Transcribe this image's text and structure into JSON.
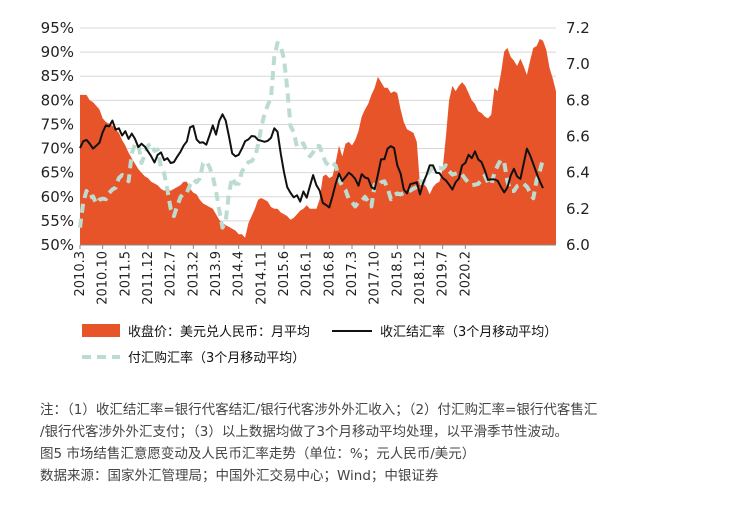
{
  "chart_data": {
    "type": "area",
    "x_tick_labels": [
      "2010.3",
      "2010.10",
      "2011.5",
      "2011.12",
      "2012.7",
      "2013.2",
      "2013.9",
      "2014.4",
      "2014.11",
      "2015.6",
      "2016.1",
      "2016.8",
      "2017.3",
      "2017.10",
      "2018.5",
      "2018.12",
      "2019.7",
      "2020.2"
    ],
    "y_left": {
      "ticks": [
        "95%",
        "90%",
        "85%",
        "80%",
        "75%",
        "70%",
        "65%",
        "60%",
        "55%",
        "50%"
      ],
      "range": [
        50,
        95
      ]
    },
    "y_right": {
      "ticks": [
        "7.2",
        "7.0",
        "6.8",
        "6.6",
        "6.4",
        "6.2",
        "6.0"
      ],
      "range": [
        6.0,
        7.2
      ]
    },
    "series": [
      {
        "name": "收盘价：美元兑人民币：月平均",
        "type": "area",
        "axis": "right",
        "color": "#e8542a",
        "values": [
          6.83,
          6.83,
          6.83,
          6.8,
          6.79,
          6.77,
          6.75,
          6.7,
          6.68,
          6.67,
          6.66,
          6.64,
          6.62,
          6.58,
          6.55,
          6.51,
          6.48,
          6.45,
          6.42,
          6.4,
          6.38,
          6.37,
          6.35,
          6.34,
          6.33,
          6.31,
          6.3,
          6.31,
          6.3,
          6.31,
          6.32,
          6.33,
          6.35,
          6.35,
          6.31,
          6.29,
          6.28,
          6.25,
          6.23,
          6.22,
          6.21,
          6.2,
          6.17,
          6.14,
          6.12,
          6.11,
          6.1,
          6.09,
          6.08,
          6.06,
          6.06,
          6.04,
          6.12,
          6.16,
          6.2,
          6.25,
          6.26,
          6.25,
          6.24,
          6.21,
          6.2,
          6.2,
          6.18,
          6.17,
          6.16,
          6.14,
          6.15,
          6.17,
          6.19,
          6.2,
          6.22,
          6.2,
          6.2,
          6.2,
          6.25,
          6.38,
          6.39,
          6.37,
          6.38,
          6.46,
          6.55,
          6.49,
          6.56,
          6.57,
          6.55,
          6.58,
          6.63,
          6.71,
          6.75,
          6.78,
          6.83,
          6.87,
          6.93,
          6.9,
          6.87,
          6.87,
          6.84,
          6.85,
          6.84,
          6.75,
          6.68,
          6.64,
          6.63,
          6.62,
          6.57,
          6.33,
          6.34,
          6.32,
          6.28,
          6.32,
          6.34,
          6.35,
          6.42,
          6.6,
          6.8,
          6.88,
          6.85,
          6.88,
          6.9,
          6.88,
          6.84,
          6.8,
          6.78,
          6.74,
          6.73,
          6.71,
          6.7,
          6.72,
          6.87,
          6.85,
          6.95,
          7.07,
          7.09,
          7.04,
          7.02,
          6.99,
          7.03,
          6.99,
          6.94,
          7.02,
          7.09,
          7.1,
          7.14,
          7.13,
          7.08,
          6.98,
          6.92,
          6.85
        ]
      },
      {
        "name": "收汇结汇率（3个月移动平均）",
        "type": "line",
        "axis": "left",
        "color": "#111111",
        "values": [
          70.1,
          71.5,
          71.8,
          71.0,
          70.0,
          70.6,
          71.2,
          73.4,
          74.8,
          74.6,
          75.8,
          73.9,
          74.2,
          72.7,
          73.6,
          72.0,
          73.1,
          72.0,
          70.3,
          71.0,
          70.4,
          69.4,
          68.4,
          67.1,
          68.7,
          69.2,
          67.6,
          68.0,
          67.0,
          67.2,
          68.3,
          69.3,
          70.6,
          71.5,
          74.4,
          74.7,
          71.9,
          71.2,
          71.3,
          70.8,
          72.7,
          74.8,
          72.9,
          75.7,
          77.1,
          75.8,
          72.5,
          69.0,
          68.4,
          68.7,
          70.0,
          71.5,
          71.9,
          72.6,
          72.5,
          71.8,
          71.6,
          71.4,
          71.6,
          72.2,
          74.2,
          73.5,
          68.9,
          65.1,
          62.0,
          60.8,
          59.9,
          60.3,
          59.0,
          61.1,
          59.8,
          62.2,
          64.5,
          62.4,
          61.3,
          58.7,
          58.3,
          57.8,
          60.2,
          62.8,
          64.8,
          63.3,
          64.1,
          65.0,
          64.5,
          63.7,
          62.3,
          64.7,
          64.0,
          63.8,
          62.0,
          61.6,
          64.6,
          67.8,
          67.8,
          70.0,
          70.5,
          70.1,
          66.5,
          64.8,
          61.5,
          60.7,
          62.6,
          62.8,
          63.0,
          60.5,
          62.9,
          64.5,
          66.5,
          66.5,
          65.0,
          64.9,
          63.9,
          63.4,
          62.5,
          61.5,
          63.0,
          63.8,
          66.5,
          67.0,
          68.7,
          68.0,
          69.4,
          67.7,
          67.2,
          65.5,
          63.5,
          63.6,
          63.6,
          63.3,
          62.0,
          60.9,
          61.9,
          64.4,
          65.8,
          64.2,
          63.7,
          66.8,
          70.0,
          68.6,
          66.8,
          64.9,
          63.2,
          61.8
        ]
      },
      {
        "name": "付汇购汇率（3个月移动平均）",
        "type": "line",
        "axis": "left",
        "color": "#bcdcd0",
        "dashed": true,
        "values": [
          53.6,
          58.8,
          61.2,
          59.8,
          60.1,
          58.6,
          59.4,
          59.6,
          59.5,
          60.8,
          61.5,
          61.9,
          63.9,
          64.5,
          64.1,
          63.2,
          69.0,
          70.9,
          71.0,
          67.0,
          68.8,
          70.6,
          71.1,
          69.5,
          69.8,
          66.1,
          64.8,
          61.4,
          57.5,
          56.0,
          58.0,
          59.9,
          60.8,
          60.9,
          62.5,
          63.6,
          63.0,
          63.8,
          66.9,
          67.3,
          66.2,
          64.2,
          61.2,
          57.3,
          53.6,
          54.9,
          60.9,
          64.0,
          62.7,
          62.7,
          65.2,
          66.4,
          67.2,
          67.4,
          68.2,
          70.8,
          74.4,
          77.3,
          79.0,
          80.6,
          89.0,
          91.9,
          91.1,
          88.6,
          82.6,
          74.7,
          73.4,
          70.3,
          70.9,
          71.1,
          69.4,
          68.4,
          69.2,
          70.6,
          70.5,
          68.5,
          67.0,
          66.4,
          67.0,
          66.4,
          63.6,
          62.2,
          61.4,
          59.5,
          58.9,
          58.0,
          58.9,
          59.1,
          60.0,
          59.0,
          58.0,
          62.5,
          62.2,
          63.0,
          63.2,
          61.8,
          59.5,
          60.4,
          60.7,
          60.5,
          60.8,
          61.0,
          61.3,
          61.7,
          62.0,
          63.3,
          62.8,
          64.3,
          65.4,
          65.9,
          65.7,
          66.0,
          65.8,
          66.5,
          65.3,
          64.6,
          64.8,
          65.0,
          64.6,
          63.7,
          62.9,
          62.4,
          62.5,
          62.7,
          63.5,
          64.4,
          63.0,
          62.5,
          65.0,
          66.5,
          67.7,
          67.1,
          63.2,
          61.2,
          61.2,
          62.2,
          62.5,
          62.7,
          62.1,
          60.9,
          59.7,
          63.5,
          65.3,
          67.8
        ]
      }
    ]
  },
  "notes": {
    "line1": "注：（1）收汇结汇率=银行代客结汇/银行代客涉外外汇收入；（2）付汇购汇率=银行代客售汇",
    "line2": "/银行代客涉外外汇支付；（3）以上数据均做了3个月移动平均处理，以平滑季节性波动。",
    "title": "图5 市场结售汇意愿变动及人民币汇率走势（单位：%；元人民币/美元）",
    "source": "数据来源：国家外汇管理局；中国外汇交易中心；Wind；中银证券"
  }
}
